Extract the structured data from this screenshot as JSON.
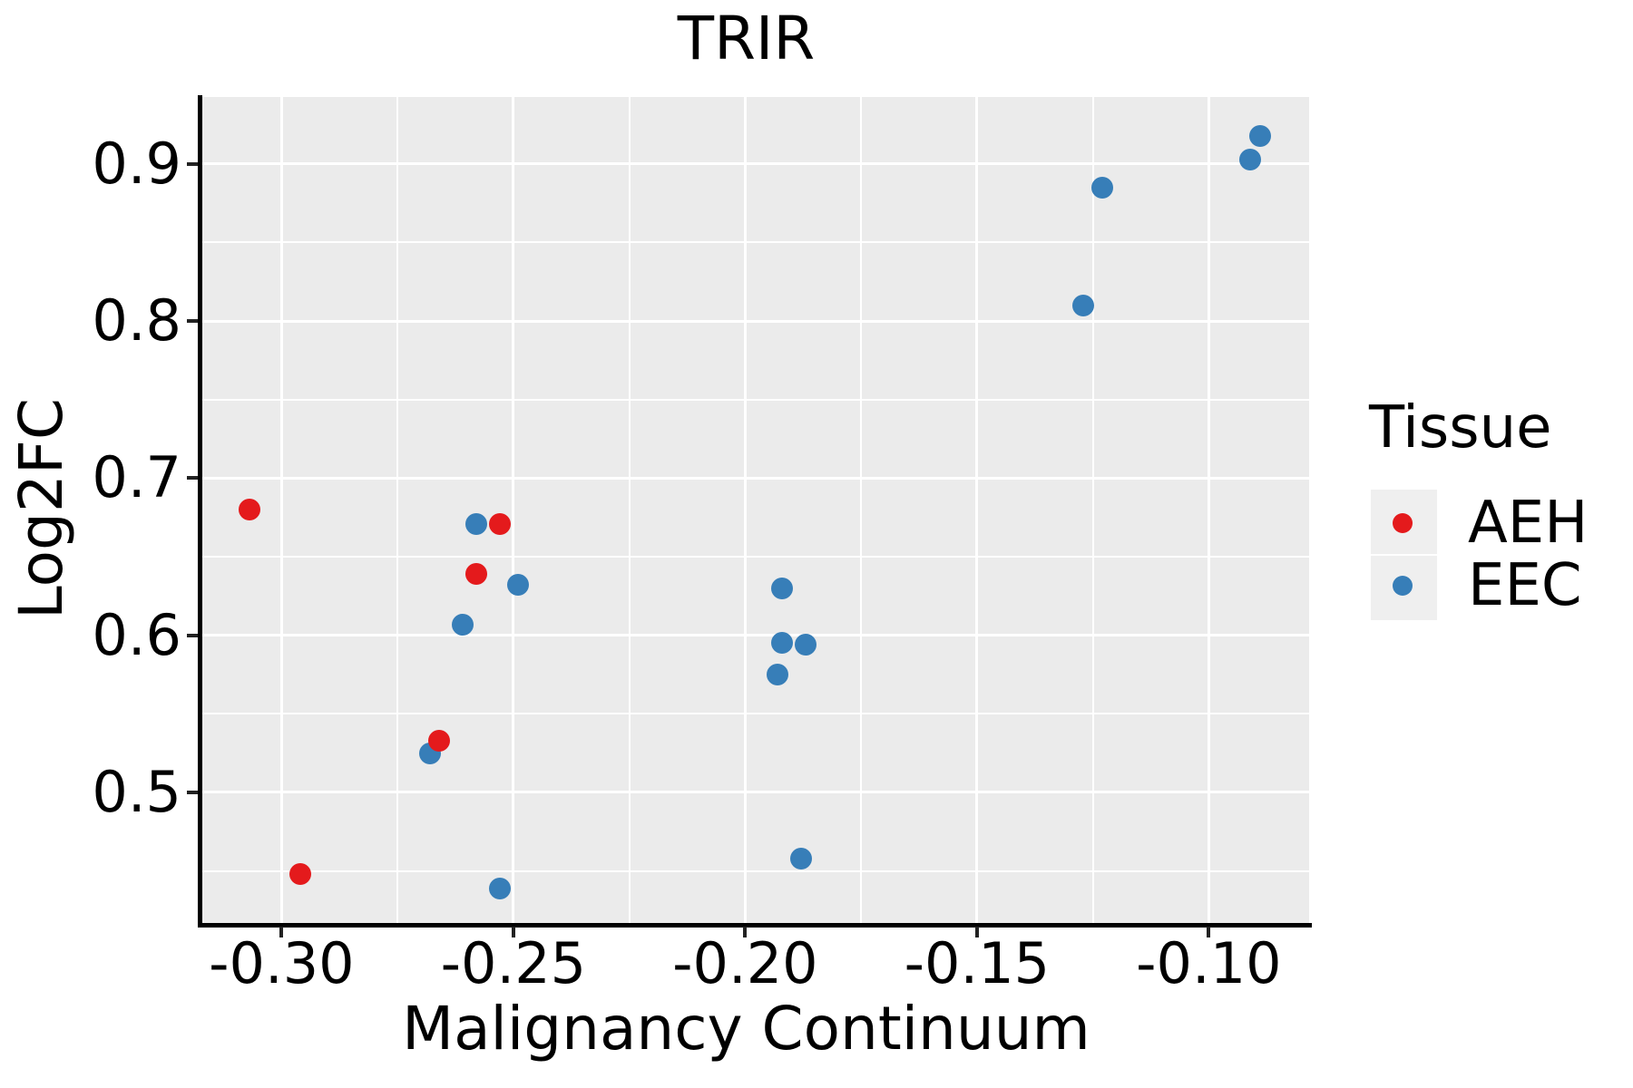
{
  "title": "TRIR",
  "axes": {
    "x": {
      "label": "Malignancy Continuum",
      "tick_labels": [
        "-0.30",
        "-0.25",
        "-0.20",
        "-0.15",
        "-0.10"
      ]
    },
    "y": {
      "label": "Log2FC",
      "tick_labels": [
        "0.9",
        "0.8",
        "0.7",
        "0.6",
        "0.5"
      ]
    }
  },
  "legend": {
    "title": "Tissue",
    "entries": [
      {
        "label": "AEH",
        "color": "#E41A1C"
      },
      {
        "label": "EEC",
        "color": "#377EB8"
      }
    ]
  },
  "colors": {
    "aeh": "#E41A1C",
    "eec": "#377EB8",
    "panel_background": "#EBEBEB",
    "grid": "#FFFFFF",
    "legend_key_background": "#EFEFEF",
    "axis": "#000000"
  },
  "chart_data": {
    "type": "scatter",
    "title": "TRIR",
    "xlabel": "Malignancy Continuum",
    "ylabel": "Log2FC",
    "xlim": [
      -0.317,
      -0.078
    ],
    "ylim": [
      0.416,
      0.943
    ],
    "x_major_ticks": [
      -0.3,
      -0.25,
      -0.2,
      -0.15,
      -0.1
    ],
    "y_major_ticks": [
      0.9,
      0.8,
      0.7,
      0.6,
      0.5
    ],
    "grid": "white major and minor gridlines on gray panel",
    "legend_position": "right",
    "series": [
      {
        "name": "AEH",
        "color": "#E41A1C",
        "points": [
          [
            -0.307,
            0.68
          ],
          [
            -0.253,
            0.671
          ],
          [
            -0.258,
            0.639
          ],
          [
            -0.266,
            0.533
          ],
          [
            -0.296,
            0.448
          ]
        ]
      },
      {
        "name": "EEC",
        "color": "#377EB8",
        "points": [
          [
            -0.089,
            0.918
          ],
          [
            -0.091,
            0.903
          ],
          [
            -0.123,
            0.885
          ],
          [
            -0.127,
            0.81
          ],
          [
            -0.258,
            0.671
          ],
          [
            -0.249,
            0.632
          ],
          [
            -0.261,
            0.607
          ],
          [
            -0.268,
            0.525
          ],
          [
            -0.253,
            0.439
          ],
          [
            -0.192,
            0.63
          ],
          [
            -0.192,
            0.595
          ],
          [
            -0.187,
            0.594
          ],
          [
            -0.193,
            0.575
          ],
          [
            -0.188,
            0.458
          ]
        ]
      }
    ]
  }
}
